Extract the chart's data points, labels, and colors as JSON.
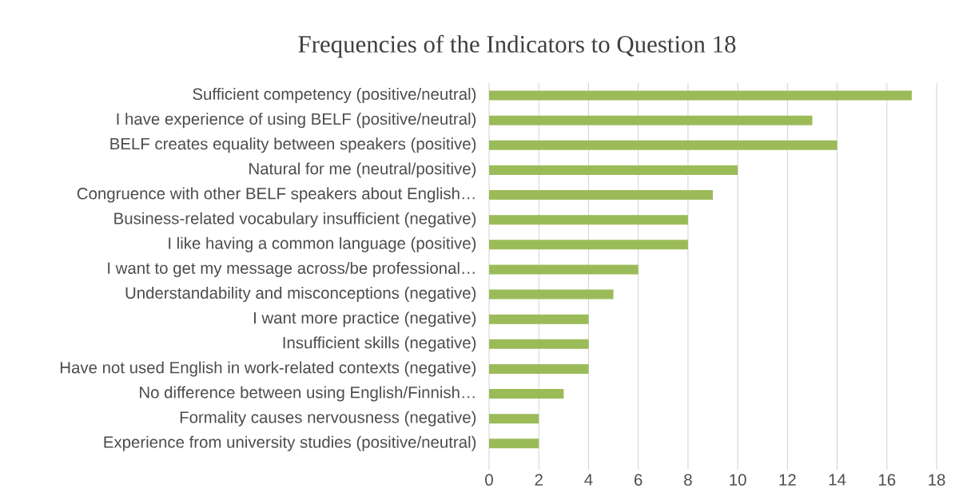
{
  "chart_data": {
    "type": "bar",
    "orientation": "horizontal",
    "title": "Frequencies of the Indicators to Question 18",
    "categories": [
      "Sufficient competency (positive/neutral)",
      "I have experience of using BELF (positive/neutral)",
      "BELF creates equality between speakers (positive)",
      "Natural for me (neutral/positive)",
      "Congruence with other BELF speakers about English…",
      "Business-related vocabulary insufficient (negative)",
      "I like having a common language (positive)",
      "I want to get my message across/be professional…",
      "Understandability and misconceptions (negative)",
      "I want more practice (negative)",
      "Insufficient skills (negative)",
      "Have not used English in work-related contexts (negative)",
      "No difference between using English/Finnish…",
      "Formality causes nervousness (negative)",
      "Experience from university studies (positive/neutral)"
    ],
    "values": [
      17,
      13,
      14,
      10,
      9,
      8,
      8,
      6,
      5,
      4,
      4,
      4,
      3,
      2,
      2
    ],
    "color": "#9bbb59",
    "xlim": [
      0,
      18
    ],
    "xticks": [
      0,
      2,
      4,
      6,
      8,
      10,
      12,
      14,
      16,
      18
    ],
    "grid": "x"
  }
}
